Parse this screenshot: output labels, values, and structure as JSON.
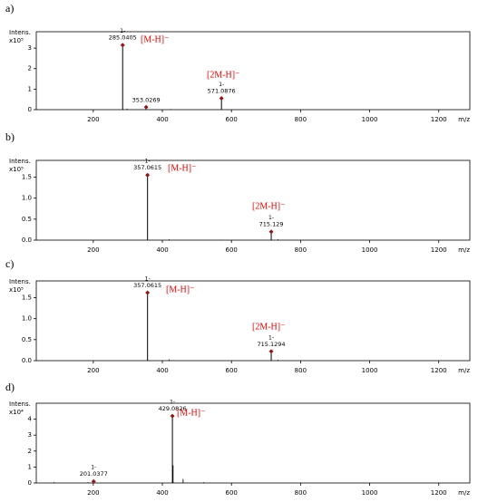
{
  "chart_data": [
    {
      "type": "spectrum",
      "label": "a)",
      "y_label": "Intens.",
      "y_unit": "x10⁵",
      "x_label": "m/z",
      "x": [
        285.0405,
        353.0269,
        571.0876
      ],
      "values": [
        3.15,
        0.12,
        0.55
      ],
      "charges": [
        "1-",
        null,
        "1-"
      ],
      "minor_x": [
        298,
        425
      ],
      "minor_values": [
        0.05,
        0.03
      ],
      "annotations": [
        "[M-H]⁻",
        "[2M-H]⁻"
      ],
      "xlim": [
        35,
        1290
      ],
      "xticks": [
        200,
        400,
        600,
        800,
        1000,
        1200
      ],
      "ylim": [
        0,
        3.8
      ],
      "yticks": [
        0,
        1,
        2,
        3
      ],
      "color": "#000000",
      "marker_color": "#8b1a1a"
    },
    {
      "type": "spectrum",
      "label": "b)",
      "y_label": "Intens.",
      "y_unit": "x10⁵",
      "x_label": "m/z",
      "x": [
        357.0615,
        715.129
      ],
      "values": [
        1.55,
        0.2
      ],
      "charges": [
        "1-",
        "1-"
      ],
      "minor_x": [
        420,
        570,
        735
      ],
      "minor_values": [
        0.02,
        0.01,
        0.02
      ],
      "annotations": [
        "[M-H]⁻",
        "[2M-H]⁻"
      ],
      "xlim": [
        35,
        1290
      ],
      "xticks": [
        200,
        400,
        600,
        800,
        1000,
        1200
      ],
      "ylim": [
        0,
        1.9
      ],
      "yticks": [
        {
          "value": 0,
          "label": "0.0"
        },
        0.5,
        {
          "value": 1,
          "label": "1.0"
        },
        1.5
      ],
      "color": "#000000",
      "marker_color": "#8b1a1a"
    },
    {
      "type": "spectrum",
      "label": "c)",
      "y_label": "Intens.",
      "y_unit": "x10⁵",
      "x_label": "m/z",
      "x": [
        357.0615,
        715.1294
      ],
      "values": [
        1.62,
        0.22
      ],
      "charges": [
        "1-",
        "1-"
      ],
      "minor_x": [
        420,
        735
      ],
      "minor_values": [
        0.03,
        0.02
      ],
      "annotations": [
        "[M-H]⁻",
        "[2M-H]⁻"
      ],
      "xlim": [
        35,
        1290
      ],
      "xticks": [
        200,
        400,
        600,
        800,
        1000,
        1200
      ],
      "ylim": [
        0,
        1.9
      ],
      "yticks": [
        {
          "value": 0,
          "label": "0.0"
        },
        0.5,
        {
          "value": 1,
          "label": "1.0"
        },
        1.5
      ],
      "color": "#000000",
      "marker_color": "#8b1a1a"
    },
    {
      "type": "spectrum",
      "label": "d)",
      "y_label": "Intens.",
      "y_unit": "x10⁴",
      "x_label": "m/z",
      "x": [
        201.0377,
        429.0826
      ],
      "values": [
        0.1,
        4.2
      ],
      "charges": [
        "1-",
        "1-"
      ],
      "minor_x": [
        86,
        185,
        431,
        460,
        520
      ],
      "minor_values": [
        0.05,
        0.05,
        1.1,
        0.25,
        0.05
      ],
      "annotations": [
        "[M-H]⁻"
      ],
      "xlim": [
        35,
        1290
      ],
      "xticks": [
        200,
        400,
        600,
        800,
        1000,
        1200
      ],
      "ylim": [
        0,
        5
      ],
      "yticks": [
        0,
        1,
        2,
        3,
        4
      ],
      "color": "#000000",
      "marker_color": "#8b1a1a"
    }
  ]
}
